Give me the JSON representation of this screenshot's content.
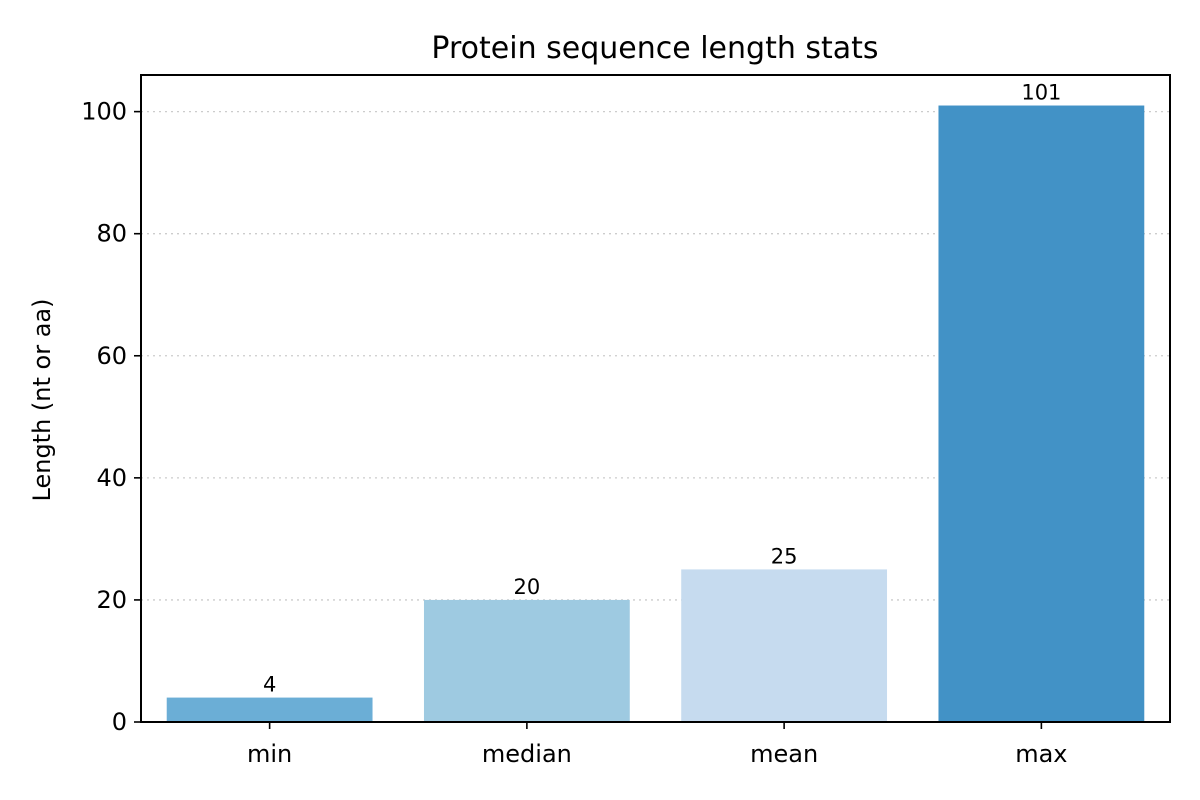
{
  "chart_data": {
    "type": "bar",
    "title": "Protein sequence length stats",
    "xlabel": "",
    "ylabel": "Length (nt or aa)",
    "categories": [
      "min",
      "median",
      "mean",
      "max"
    ],
    "values": [
      4,
      20,
      25,
      101
    ],
    "value_labels": [
      "4",
      "20",
      "25",
      "101"
    ],
    "bar_colors": [
      "#6baed6",
      "#9ecae1",
      "#c6dbef",
      "#4292c6"
    ],
    "ylim": [
      0,
      106
    ],
    "yticks": [
      0,
      20,
      40,
      60,
      80,
      100
    ],
    "ytick_labels": [
      "0",
      "20",
      "40",
      "60",
      "80",
      "100"
    ],
    "grid": "y-axis dotted",
    "legend": "none"
  }
}
